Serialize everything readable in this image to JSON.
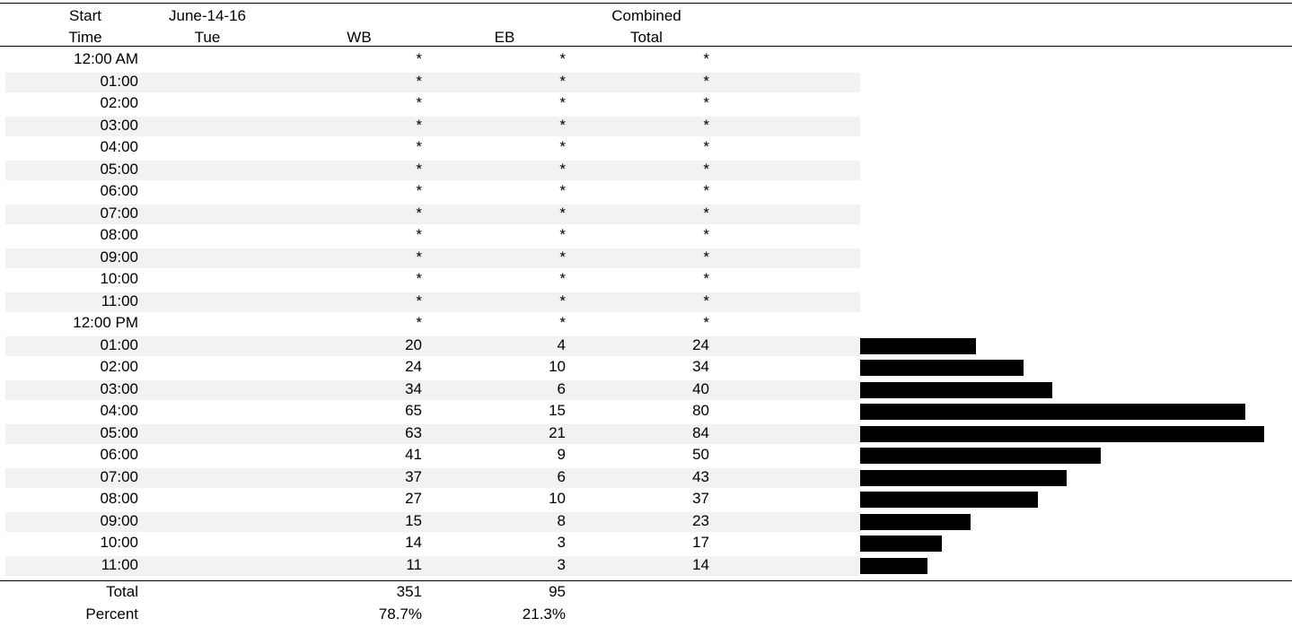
{
  "header": {
    "start_line1": "Start",
    "start_line2": "Time",
    "date_line1": "June-14-16",
    "date_line2": "Tue",
    "wb": "WB",
    "eb": "EB",
    "combined_line1": "Combined",
    "combined_line2": "Total"
  },
  "rows": [
    {
      "time": "12:00 AM",
      "wb": "*",
      "eb": "*",
      "total": "*"
    },
    {
      "time": "01:00",
      "wb": "*",
      "eb": "*",
      "total": "*"
    },
    {
      "time": "02:00",
      "wb": "*",
      "eb": "*",
      "total": "*"
    },
    {
      "time": "03:00",
      "wb": "*",
      "eb": "*",
      "total": "*"
    },
    {
      "time": "04:00",
      "wb": "*",
      "eb": "*",
      "total": "*"
    },
    {
      "time": "05:00",
      "wb": "*",
      "eb": "*",
      "total": "*"
    },
    {
      "time": "06:00",
      "wb": "*",
      "eb": "*",
      "total": "*"
    },
    {
      "time": "07:00",
      "wb": "*",
      "eb": "*",
      "total": "*"
    },
    {
      "time": "08:00",
      "wb": "*",
      "eb": "*",
      "total": "*"
    },
    {
      "time": "09:00",
      "wb": "*",
      "eb": "*",
      "total": "*"
    },
    {
      "time": "10:00",
      "wb": "*",
      "eb": "*",
      "total": "*"
    },
    {
      "time": "11:00",
      "wb": "*",
      "eb": "*",
      "total": "*"
    },
    {
      "time": "12:00 PM",
      "wb": "*",
      "eb": "*",
      "total": "*"
    },
    {
      "time": "01:00",
      "wb": "20",
      "eb": "4",
      "total": "24"
    },
    {
      "time": "02:00",
      "wb": "24",
      "eb": "10",
      "total": "34"
    },
    {
      "time": "03:00",
      "wb": "34",
      "eb": "6",
      "total": "40"
    },
    {
      "time": "04:00",
      "wb": "65",
      "eb": "15",
      "total": "80"
    },
    {
      "time": "05:00",
      "wb": "63",
      "eb": "21",
      "total": "84"
    },
    {
      "time": "06:00",
      "wb": "41",
      "eb": "9",
      "total": "50"
    },
    {
      "time": "07:00",
      "wb": "37",
      "eb": "6",
      "total": "43"
    },
    {
      "time": "08:00",
      "wb": "27",
      "eb": "10",
      "total": "37"
    },
    {
      "time": "09:00",
      "wb": "15",
      "eb": "8",
      "total": "23"
    },
    {
      "time": "10:00",
      "wb": "14",
      "eb": "3",
      "total": "17"
    },
    {
      "time": "11:00",
      "wb": "11",
      "eb": "3",
      "total": "14"
    }
  ],
  "footer": {
    "total_label": "Total",
    "percent_label": "Percent",
    "wb_total": "351",
    "eb_total": "95",
    "wb_percent": "78.7%",
    "eb_percent": "21.3%"
  },
  "colors": {
    "stripe": "#f2f2f2",
    "bar": "#000000"
  }
}
